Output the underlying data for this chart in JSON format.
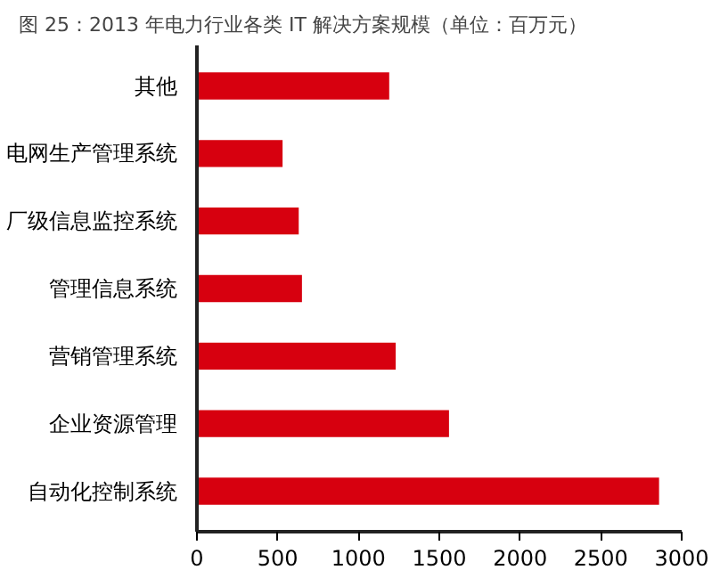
{
  "chart_data": {
    "type": "bar",
    "orientation": "horizontal",
    "title": "图 25：2013 年电力行业各类 IT 解决方案规模（单位：百万元）",
    "categories": [
      "其他",
      "电网生产管理系统",
      "厂级信息监控系统",
      "管理信息系统",
      "营销管理系统",
      "企业资源管理",
      "自动化控制系统"
    ],
    "values": [
      1190,
      530,
      630,
      650,
      1230,
      1560,
      2860
    ],
    "color": "#d7000f",
    "xlim": [
      0,
      3000
    ],
    "xticks": [
      0,
      500,
      1000,
      1500,
      2000,
      2500,
      3000
    ],
    "grid": false
  }
}
